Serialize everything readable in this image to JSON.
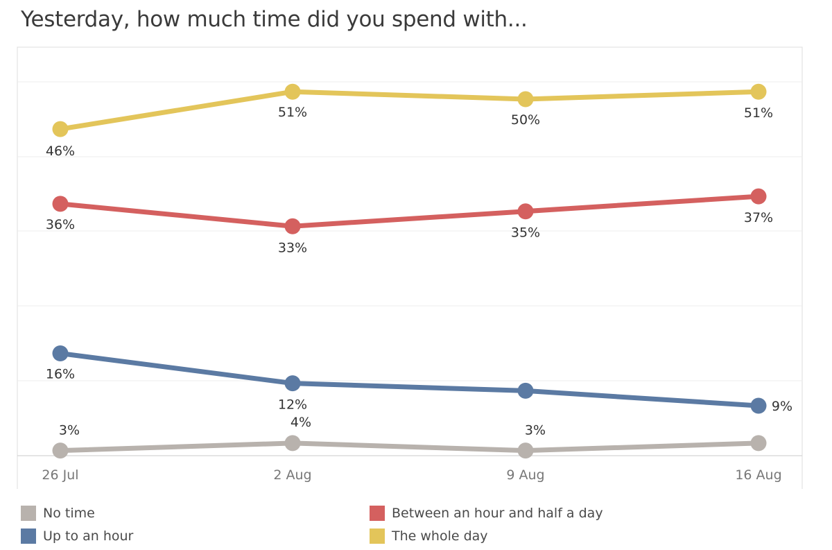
{
  "chart_data": {
    "type": "line",
    "title": "Yesterday, how much time did you spend with...",
    "categories": [
      "26 Jul",
      "2 Aug",
      "9 Aug",
      "16 Aug"
    ],
    "ylim": [
      0,
      55
    ],
    "xlabel": "",
    "ylabel": "",
    "grid": true,
    "legend_position": "bottom",
    "series": [
      {
        "name": "The whole day",
        "color": "#e3c55a",
        "values": [
          46,
          51,
          50,
          51
        ],
        "labels": [
          "46%",
          "51%",
          "50%",
          "51%"
        ]
      },
      {
        "name": "Between an hour and half a day",
        "color": "#d4605f",
        "values": [
          36,
          33,
          35,
          37
        ],
        "labels": [
          "36%",
          "33%",
          "35%",
          "37%"
        ]
      },
      {
        "name": "Up to an hour",
        "color": "#5b7aa3",
        "values": [
          16,
          12,
          11,
          9
        ],
        "labels": [
          "16%",
          "12%",
          "",
          "9%"
        ]
      },
      {
        "name": "No time",
        "color": "#b8b2ad",
        "values": [
          3,
          4,
          3,
          4
        ],
        "labels": [
          "3%",
          "4%",
          "3%",
          ""
        ]
      }
    ]
  },
  "legend": [
    {
      "label": "No time",
      "color": "#b8b2ad"
    },
    {
      "label": "Up to an hour",
      "color": "#5b7aa3"
    },
    {
      "label": "Between an hour and half a day",
      "color": "#d4605f"
    },
    {
      "label": "The whole day",
      "color": "#e3c55a"
    }
  ]
}
